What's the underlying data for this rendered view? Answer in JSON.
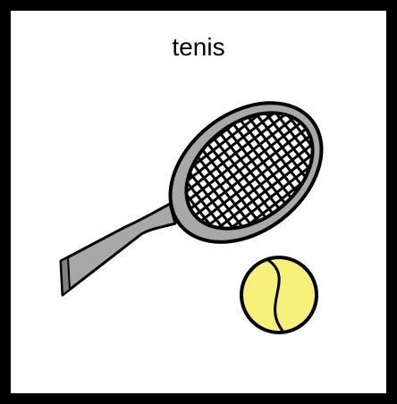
{
  "card": {
    "label": "tenis",
    "border_color": "#000000",
    "background": "#ffffff"
  },
  "illustration": {
    "racket_icon": "tennis-racket-icon",
    "ball_icon": "tennis-ball-icon",
    "colors": {
      "racket_frame": "#a8a8a8",
      "strings": "#000000",
      "ball": "#f7f07a",
      "outline": "#000000"
    }
  }
}
